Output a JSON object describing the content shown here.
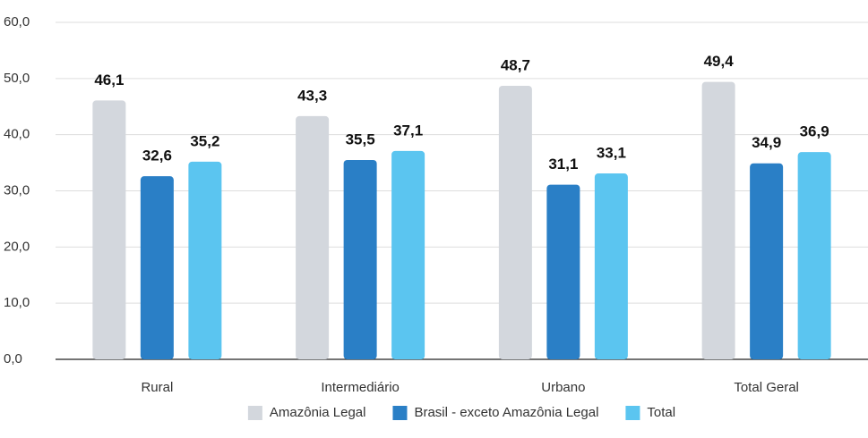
{
  "chart_data": {
    "type": "bar",
    "categories": [
      "Rural",
      "Intermediário",
      "Urbano",
      "Total Geral"
    ],
    "series": [
      {
        "name": "Amazônia Legal",
        "color": "#d3d7dd",
        "values": [
          46.1,
          43.3,
          48.7,
          49.4
        ],
        "value_labels": [
          "46,1",
          "43,3",
          "48,7",
          "49,4"
        ]
      },
      {
        "name": "Brasil - exceto Amazônia Legal",
        "color": "#2a7fc6",
        "values": [
          32.6,
          35.5,
          31.1,
          34.9
        ],
        "value_labels": [
          "32,6",
          "35,5",
          "31,1",
          "34,9"
        ]
      },
      {
        "name": "Total",
        "color": "#5bc5f0",
        "values": [
          35.2,
          37.1,
          33.1,
          36.9
        ],
        "value_labels": [
          "35,2",
          "37,1",
          "33,1",
          "36,9"
        ]
      }
    ],
    "ylim": [
      0,
      60
    ],
    "yticks": [
      {
        "value": 0,
        "label": "0,0"
      },
      {
        "value": 10,
        "label": "10,0"
      },
      {
        "value": 20,
        "label": "20,0"
      },
      {
        "value": 30,
        "label": "30,0"
      },
      {
        "value": 40,
        "label": "40,0"
      },
      {
        "value": 50,
        "label": "50,0"
      },
      {
        "value": 60,
        "label": "60,0"
      }
    ],
    "grid": true,
    "legend": "bottom"
  }
}
